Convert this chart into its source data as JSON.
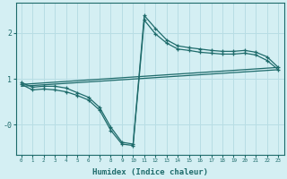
{
  "xlabel": "Humidex (Indice chaleur)",
  "bg_color": "#d4eff3",
  "grid_color": "#b8dde4",
  "line_color": "#1e6b6b",
  "xlim": [
    -0.5,
    23.5
  ],
  "ylim": [
    -0.65,
    2.65
  ],
  "series1_x": [
    0,
    1,
    2,
    3,
    4,
    5,
    6,
    7,
    8,
    9,
    10,
    11,
    12,
    13,
    14,
    15,
    16,
    17,
    18,
    19,
    20,
    21,
    22,
    23
  ],
  "series1_y": [
    0.92,
    0.82,
    0.84,
    0.84,
    0.8,
    0.7,
    0.6,
    0.38,
    -0.05,
    -0.38,
    -0.42,
    2.38,
    2.1,
    1.85,
    1.72,
    1.68,
    1.65,
    1.62,
    1.6,
    1.6,
    1.62,
    1.58,
    1.48,
    1.25
  ],
  "series2_x": [
    0,
    1,
    2,
    3,
    4,
    5,
    6,
    7,
    8,
    9,
    10,
    11,
    12,
    13,
    14,
    15,
    16,
    17,
    18,
    19,
    20,
    21,
    22,
    23
  ],
  "series2_y": [
    0.88,
    0.76,
    0.78,
    0.76,
    0.72,
    0.64,
    0.54,
    0.32,
    -0.12,
    -0.42,
    -0.45,
    2.28,
    1.98,
    1.78,
    1.65,
    1.62,
    1.58,
    1.56,
    1.54,
    1.54,
    1.56,
    1.52,
    1.4,
    1.2
  ],
  "series3_x": [
    0,
    23
  ],
  "series3_y": [
    0.88,
    1.25
  ],
  "series4_x": [
    0,
    23
  ],
  "series4_y": [
    0.84,
    1.2
  ]
}
